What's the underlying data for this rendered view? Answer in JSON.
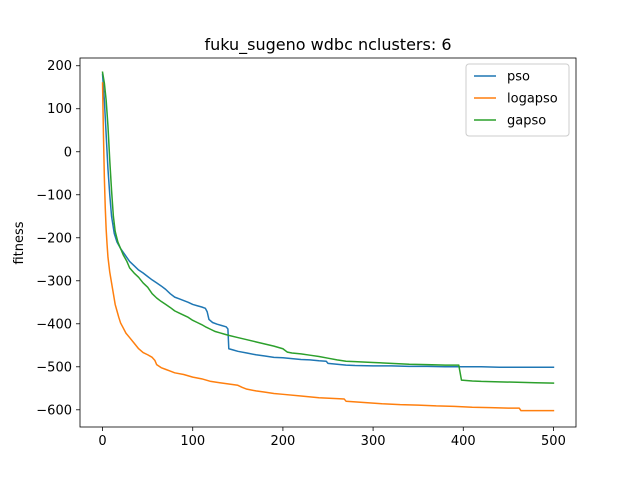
{
  "chart_data": {
    "type": "line",
    "title": "fuku_sugeno wdbc nclusters: 6",
    "xlabel": "",
    "ylabel": "fitness",
    "xlim": [
      -25,
      525
    ],
    "ylim": [
      -640,
      218
    ],
    "xticks": [
      0,
      100,
      200,
      300,
      400,
      500
    ],
    "yticks": [
      200,
      100,
      0,
      -100,
      -200,
      -300,
      -400,
      -500,
      -600
    ],
    "grid": false,
    "legend_position": "top-right",
    "series": [
      {
        "name": "pso",
        "color": "#1f77b4",
        "points": [
          [
            0,
            180
          ],
          [
            2,
            120
          ],
          [
            4,
            40
          ],
          [
            6,
            -40
          ],
          [
            8,
            -100
          ],
          [
            10,
            -150
          ],
          [
            13,
            -190
          ],
          [
            16,
            -210
          ],
          [
            20,
            -225
          ],
          [
            25,
            -240
          ],
          [
            30,
            -255
          ],
          [
            35,
            -265
          ],
          [
            40,
            -275
          ],
          [
            45,
            -282
          ],
          [
            50,
            -290
          ],
          [
            55,
            -298
          ],
          [
            60,
            -305
          ],
          [
            65,
            -312
          ],
          [
            70,
            -320
          ],
          [
            75,
            -330
          ],
          [
            80,
            -338
          ],
          [
            85,
            -342
          ],
          [
            90,
            -346
          ],
          [
            95,
            -350
          ],
          [
            100,
            -355
          ],
          [
            105,
            -358
          ],
          [
            110,
            -361
          ],
          [
            114,
            -364
          ],
          [
            116,
            -372
          ],
          [
            118,
            -390
          ],
          [
            122,
            -397
          ],
          [
            127,
            -401
          ],
          [
            132,
            -404
          ],
          [
            137,
            -407
          ],
          [
            139,
            -412
          ],
          [
            140,
            -458
          ],
          [
            145,
            -461
          ],
          [
            150,
            -464
          ],
          [
            160,
            -468
          ],
          [
            170,
            -472
          ],
          [
            180,
            -475
          ],
          [
            190,
            -478
          ],
          [
            200,
            -479
          ],
          [
            210,
            -481
          ],
          [
            220,
            -483
          ],
          [
            230,
            -484
          ],
          [
            240,
            -486
          ],
          [
            248,
            -487
          ],
          [
            250,
            -492
          ],
          [
            260,
            -494
          ],
          [
            270,
            -496
          ],
          [
            280,
            -497
          ],
          [
            300,
            -498
          ],
          [
            320,
            -498
          ],
          [
            340,
            -499
          ],
          [
            360,
            -499
          ],
          [
            380,
            -500
          ],
          [
            400,
            -500
          ],
          [
            420,
            -500
          ],
          [
            440,
            -501
          ],
          [
            460,
            -501
          ],
          [
            480,
            -501
          ],
          [
            500,
            -501
          ]
        ]
      },
      {
        "name": "logapso",
        "color": "#ff7f0e",
        "points": [
          [
            0,
            160
          ],
          [
            1,
            40
          ],
          [
            2,
            -60
          ],
          [
            3,
            -130
          ],
          [
            4,
            -180
          ],
          [
            5,
            -215
          ],
          [
            6,
            -245
          ],
          [
            8,
            -280
          ],
          [
            10,
            -305
          ],
          [
            12,
            -330
          ],
          [
            14,
            -355
          ],
          [
            16,
            -370
          ],
          [
            18,
            -385
          ],
          [
            20,
            -398
          ],
          [
            23,
            -410
          ],
          [
            26,
            -422
          ],
          [
            30,
            -432
          ],
          [
            35,
            -445
          ],
          [
            40,
            -458
          ],
          [
            45,
            -467
          ],
          [
            50,
            -472
          ],
          [
            55,
            -478
          ],
          [
            58,
            -485
          ],
          [
            60,
            -495
          ],
          [
            65,
            -502
          ],
          [
            70,
            -506
          ],
          [
            75,
            -510
          ],
          [
            80,
            -514
          ],
          [
            90,
            -518
          ],
          [
            100,
            -524
          ],
          [
            110,
            -528
          ],
          [
            120,
            -534
          ],
          [
            130,
            -537
          ],
          [
            140,
            -540
          ],
          [
            150,
            -543
          ],
          [
            155,
            -548
          ],
          [
            160,
            -552
          ],
          [
            170,
            -556
          ],
          [
            180,
            -559
          ],
          [
            190,
            -562
          ],
          [
            200,
            -564
          ],
          [
            220,
            -568
          ],
          [
            240,
            -572
          ],
          [
            260,
            -574
          ],
          [
            268,
            -575
          ],
          [
            270,
            -580
          ],
          [
            290,
            -583
          ],
          [
            310,
            -586
          ],
          [
            330,
            -588
          ],
          [
            350,
            -589
          ],
          [
            370,
            -591
          ],
          [
            390,
            -592
          ],
          [
            410,
            -594
          ],
          [
            430,
            -595
          ],
          [
            450,
            -596
          ],
          [
            462,
            -596
          ],
          [
            464,
            -602
          ],
          [
            480,
            -602
          ],
          [
            500,
            -602
          ]
        ]
      },
      {
        "name": "gapso",
        "color": "#2ca02c",
        "points": [
          [
            0,
            185
          ],
          [
            2,
            160
          ],
          [
            4,
            120
          ],
          [
            6,
            60
          ],
          [
            8,
            -20
          ],
          [
            10,
            -90
          ],
          [
            12,
            -150
          ],
          [
            14,
            -185
          ],
          [
            17,
            -210
          ],
          [
            20,
            -225
          ],
          [
            23,
            -240
          ],
          [
            27,
            -255
          ],
          [
            30,
            -270
          ],
          [
            35,
            -282
          ],
          [
            40,
            -292
          ],
          [
            45,
            -305
          ],
          [
            50,
            -315
          ],
          [
            55,
            -330
          ],
          [
            60,
            -340
          ],
          [
            65,
            -348
          ],
          [
            70,
            -355
          ],
          [
            75,
            -362
          ],
          [
            80,
            -370
          ],
          [
            85,
            -375
          ],
          [
            90,
            -380
          ],
          [
            95,
            -385
          ],
          [
            100,
            -392
          ],
          [
            105,
            -397
          ],
          [
            110,
            -402
          ],
          [
            115,
            -408
          ],
          [
            120,
            -413
          ],
          [
            125,
            -418
          ],
          [
            130,
            -421
          ],
          [
            135,
            -424
          ],
          [
            140,
            -427
          ],
          [
            150,
            -432
          ],
          [
            160,
            -437
          ],
          [
            170,
            -442
          ],
          [
            180,
            -447
          ],
          [
            190,
            -452
          ],
          [
            200,
            -458
          ],
          [
            205,
            -466
          ],
          [
            210,
            -468
          ],
          [
            220,
            -470
          ],
          [
            230,
            -473
          ],
          [
            240,
            -476
          ],
          [
            250,
            -480
          ],
          [
            260,
            -484
          ],
          [
            270,
            -487
          ],
          [
            280,
            -488
          ],
          [
            300,
            -490
          ],
          [
            320,
            -492
          ],
          [
            340,
            -494
          ],
          [
            360,
            -495
          ],
          [
            380,
            -496
          ],
          [
            395,
            -496
          ],
          [
            398,
            -531
          ],
          [
            410,
            -533
          ],
          [
            420,
            -534
          ],
          [
            440,
            -535
          ],
          [
            460,
            -536
          ],
          [
            480,
            -537
          ],
          [
            500,
            -538
          ]
        ]
      }
    ]
  }
}
